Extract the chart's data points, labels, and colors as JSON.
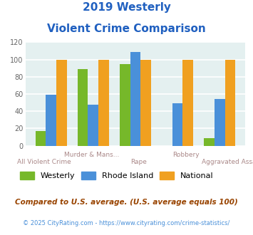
{
  "title_line1": "2019 Westerly",
  "title_line2": "Violent Crime Comparison",
  "categories": [
    "All Violent Crime",
    "Murder & Mans...",
    "Rape",
    "Robbery",
    "Aggravated Assault"
  ],
  "top_labels": [
    "",
    "Murder & Mans...",
    "",
    "Robbery",
    ""
  ],
  "bottom_labels": [
    "All Violent Crime",
    "",
    "Rape",
    "",
    "Aggravated Assault"
  ],
  "westerly": [
    17,
    89,
    95,
    0,
    9
  ],
  "rhode_island": [
    59,
    48,
    109,
    49,
    54
  ],
  "national": [
    100,
    100,
    100,
    100,
    100
  ],
  "westerly_color": "#76B82A",
  "rhode_island_color": "#4A90D9",
  "national_color": "#F0A020",
  "ylim": [
    0,
    120
  ],
  "yticks": [
    0,
    20,
    40,
    60,
    80,
    100,
    120
  ],
  "bg_color": "#E4F0F0",
  "grid_color": "#FFFFFF",
  "title_color": "#2060C0",
  "xlabel_color": "#AA8888",
  "legend_labels": [
    "Westerly",
    "Rhode Island",
    "National"
  ],
  "footnote1": "Compared to U.S. average. (U.S. average equals 100)",
  "footnote2": "© 2025 CityRating.com - https://www.cityrating.com/crime-statistics/",
  "footnote1_color": "#994400",
  "footnote2_color": "#4A90D9",
  "bar_width": 0.25,
  "group_positions": [
    0,
    1,
    2,
    3,
    4
  ]
}
